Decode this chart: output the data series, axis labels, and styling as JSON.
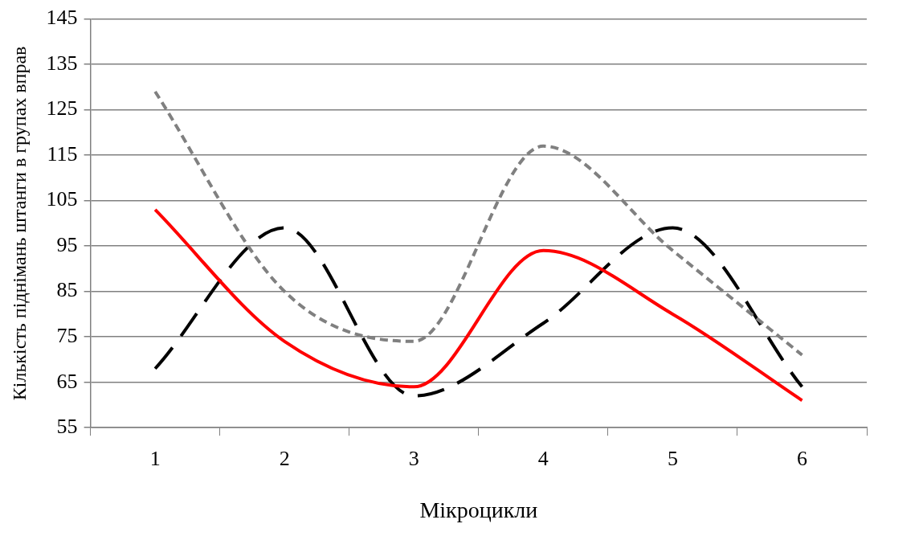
{
  "chart_data": {
    "type": "line",
    "xlabel": "Мікроцикли",
    "ylabel": "Кількість піднімань штанги в групах вправ",
    "categories": [
      "1",
      "2",
      "3",
      "4",
      "5",
      "6"
    ],
    "series": [
      {
        "color": "#ff0000",
        "line_style": "solid",
        "values": [
          103,
          74,
          64,
          94,
          80,
          61
        ]
      },
      {
        "color": "#808080",
        "line_style": "dotted",
        "values": [
          129,
          85,
          74,
          117,
          94,
          71
        ]
      },
      {
        "color": "#000000",
        "line_style": "dashed",
        "values": [
          68,
          99,
          62,
          78,
          99,
          64
        ]
      }
    ],
    "ylim": [
      55,
      145
    ],
    "yticks": [
      55,
      65,
      75,
      85,
      95,
      105,
      115,
      125,
      135,
      145
    ],
    "grid": "y",
    "legend": false,
    "marker": "none"
  }
}
